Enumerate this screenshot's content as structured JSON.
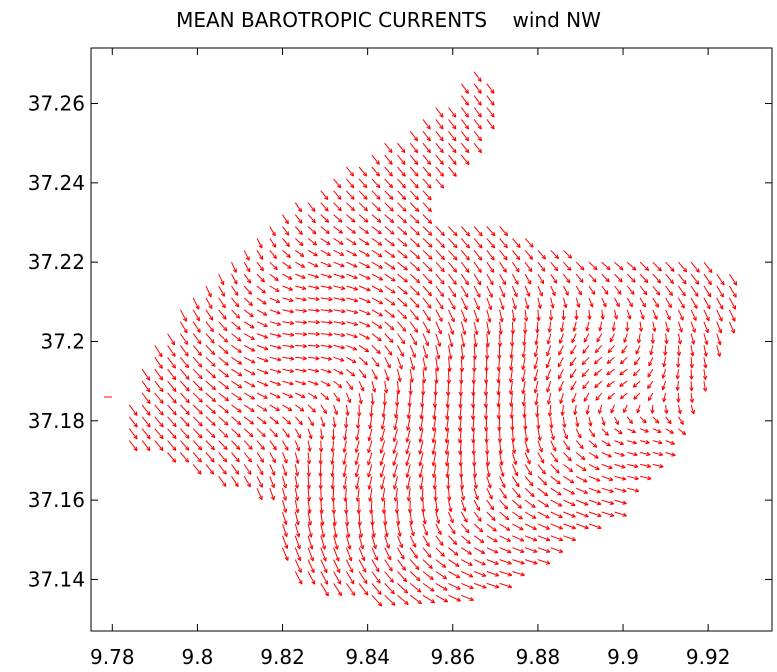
{
  "chart_data": {
    "type": "quiver",
    "title": "MEAN BAROTROPIC CURRENTS    wind NW",
    "xlabel": "",
    "ylabel": "",
    "xlim": [
      9.775,
      9.935
    ],
    "ylim": [
      37.127,
      37.274
    ],
    "x_ticks": [
      "9.78",
      "9.8",
      "9.82",
      "9.84",
      "9.86",
      "9.88",
      "9.9",
      "9.92"
    ],
    "y_ticks": [
      "37.14",
      "37.16",
      "37.18",
      "37.2",
      "37.22",
      "37.24",
      "37.26"
    ],
    "grid": false,
    "legend": "none",
    "arrow_color": "#ff0000",
    "domain_outline": [
      [
        9.781,
        37.176
      ],
      [
        9.784,
        37.186
      ],
      [
        9.788,
        37.196
      ],
      [
        9.793,
        37.205
      ],
      [
        9.799,
        37.214
      ],
      [
        9.806,
        37.221
      ],
      [
        9.813,
        37.226
      ],
      [
        9.819,
        37.232
      ],
      [
        9.826,
        37.238
      ],
      [
        9.833,
        37.244
      ],
      [
        9.842,
        37.249
      ],
      [
        9.851,
        37.255
      ],
      [
        9.859,
        37.262
      ],
      [
        9.866,
        37.27
      ],
      [
        9.871,
        37.258
      ],
      [
        9.864,
        37.248
      ],
      [
        9.853,
        37.238
      ],
      [
        9.857,
        37.229
      ],
      [
        9.867,
        37.231
      ],
      [
        9.878,
        37.226
      ],
      [
        9.89,
        37.222
      ],
      [
        9.904,
        37.221
      ],
      [
        9.918,
        37.221
      ],
      [
        9.928,
        37.218
      ],
      [
        9.927,
        37.208
      ],
      [
        9.922,
        37.197
      ],
      [
        9.918,
        37.186
      ],
      [
        9.913,
        37.176
      ],
      [
        9.906,
        37.166
      ],
      [
        9.898,
        37.157
      ],
      [
        9.889,
        37.151
      ],
      [
        9.88,
        37.144
      ],
      [
        9.869,
        37.137
      ],
      [
        9.858,
        37.135
      ],
      [
        9.846,
        37.135
      ],
      [
        9.835,
        37.137
      ],
      [
        9.824,
        37.14
      ],
      [
        9.82,
        37.146
      ],
      [
        9.819,
        37.153
      ],
      [
        9.818,
        37.16
      ],
      [
        9.81,
        37.164
      ],
      [
        9.8,
        37.168
      ],
      [
        9.791,
        37.172
      ]
    ],
    "arrow_spacing_deg": 0.003,
    "stray_points": [
      [
        9.779,
        37.186
      ]
    ]
  }
}
